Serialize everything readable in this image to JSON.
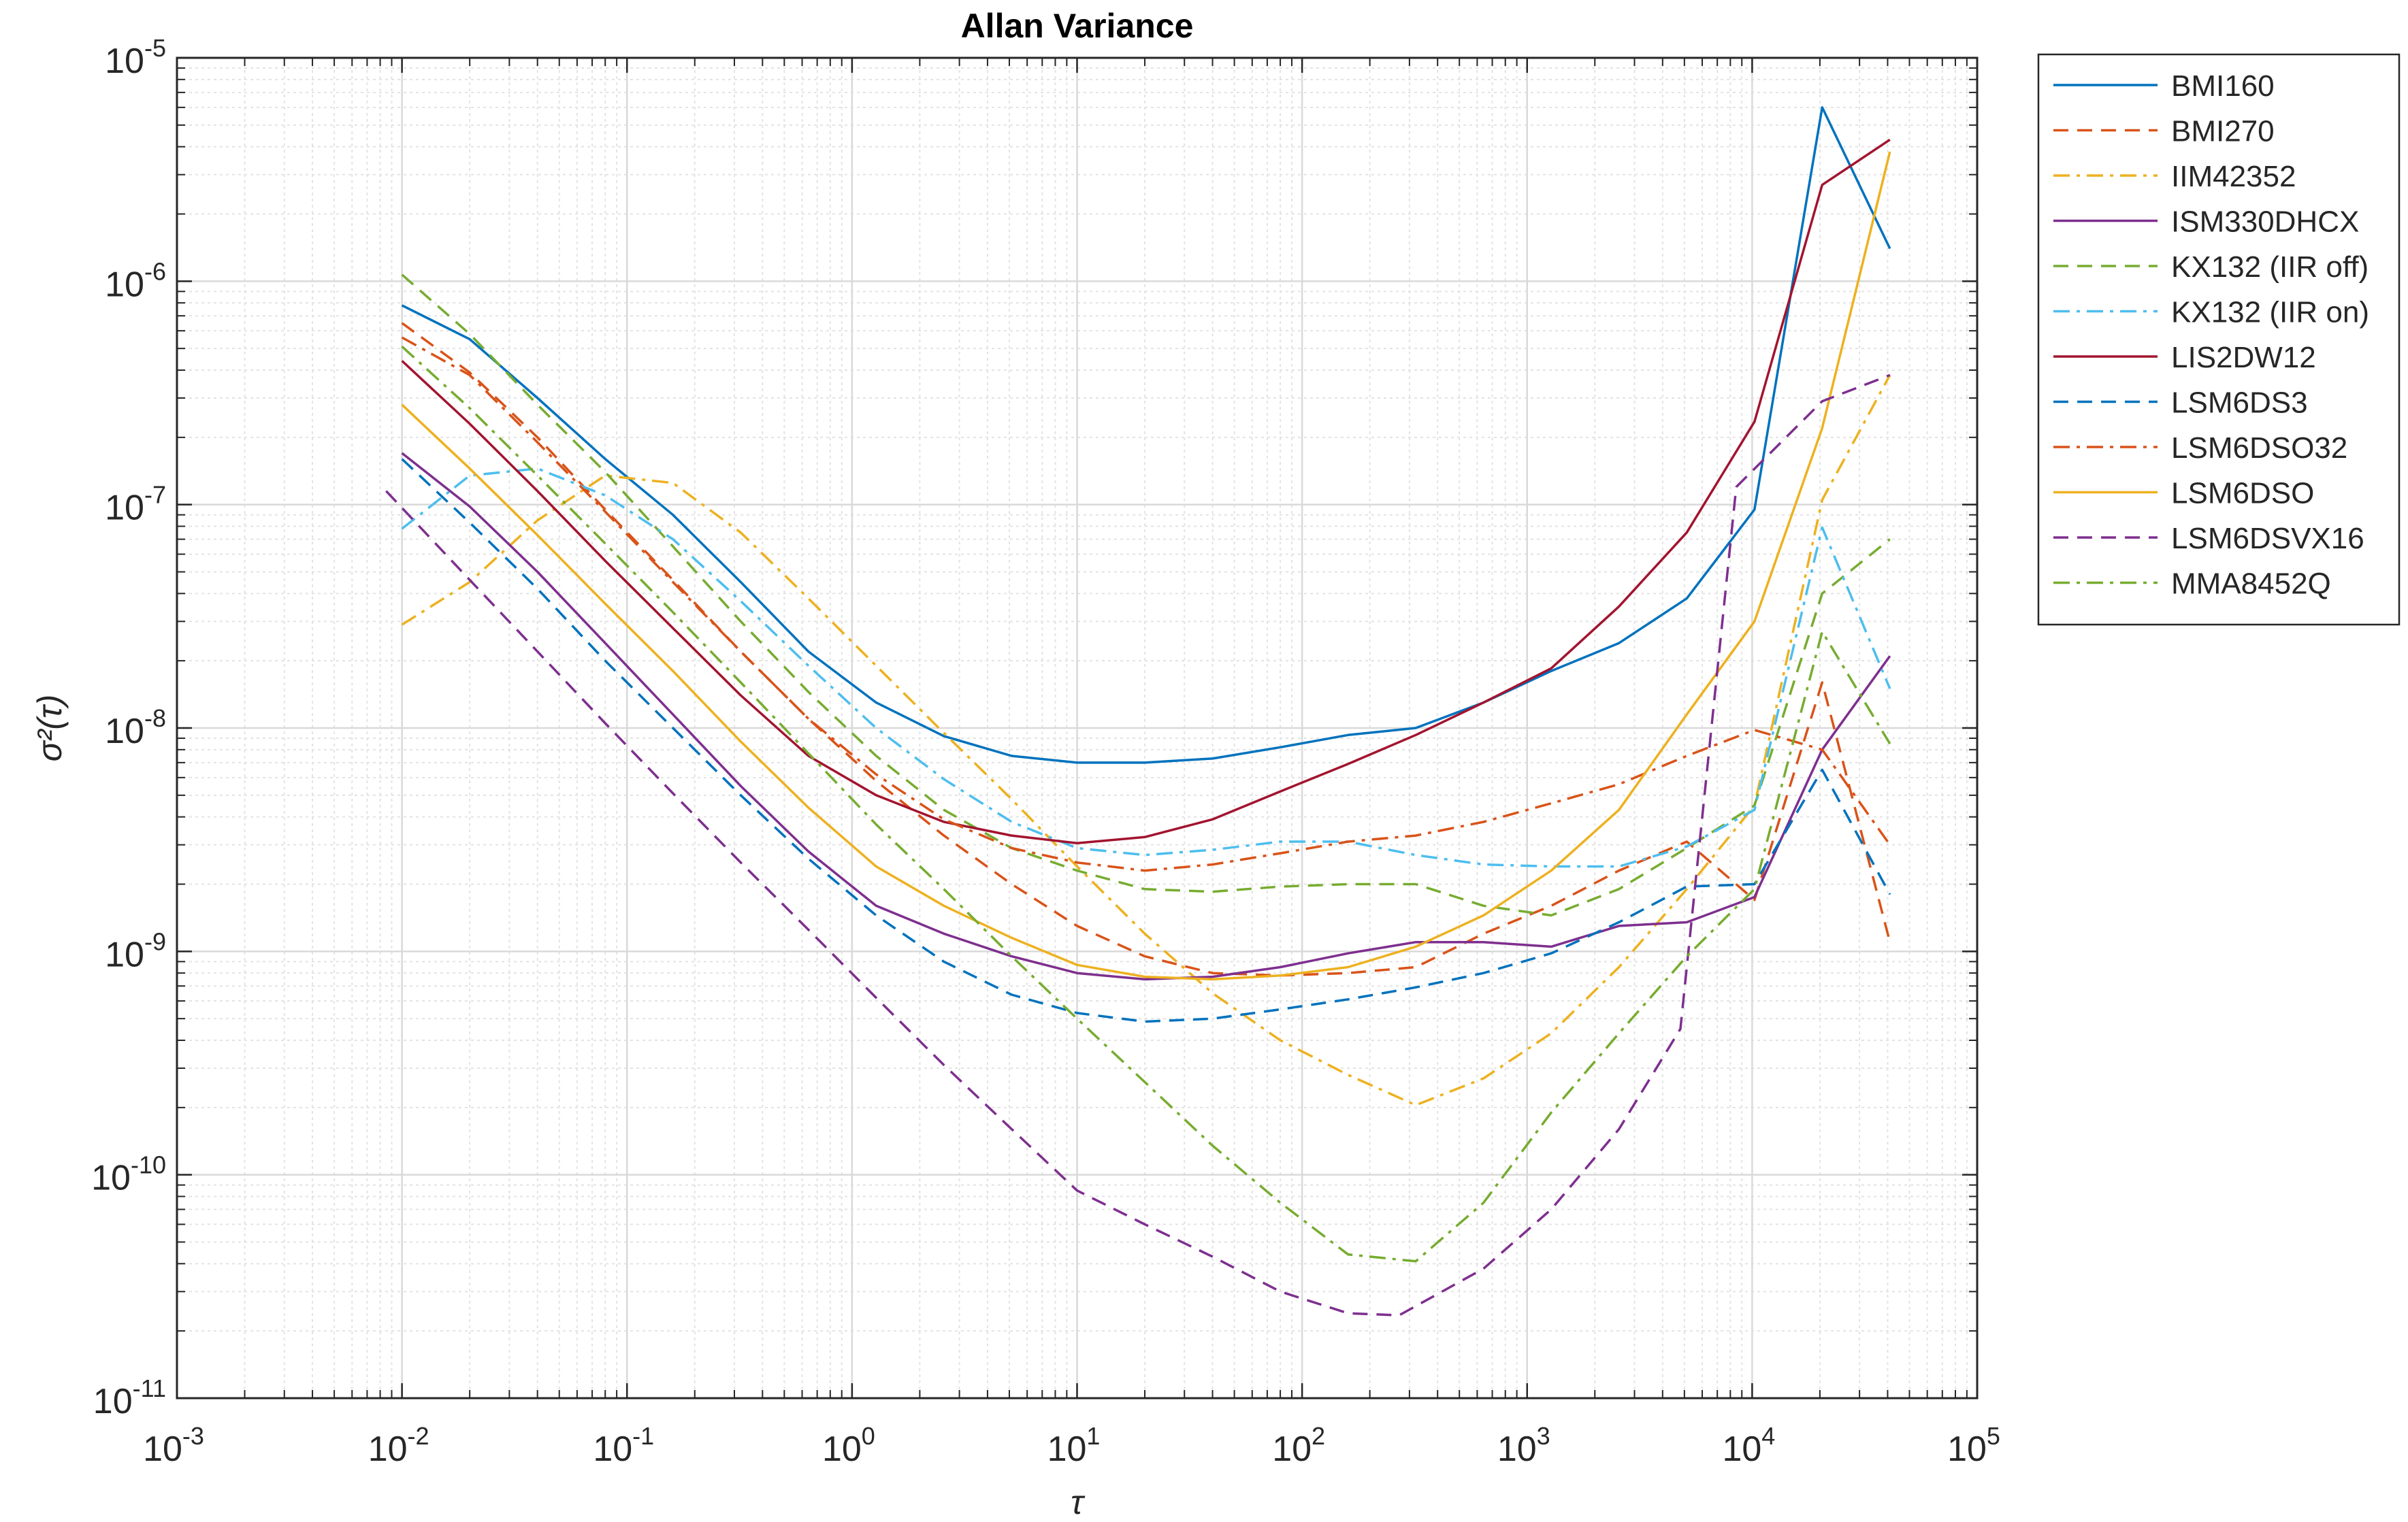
{
  "chart_data": {
    "type": "line",
    "title": "Allan Variance",
    "xlabel": "τ",
    "ylabel": "σ²(τ)",
    "xscale": "log",
    "yscale": "log",
    "xlim": [
      0.001,
      100000
    ],
    "ylim": [
      1e-11,
      1e-05
    ],
    "grid": true,
    "minor_grid": true,
    "legend_position": "outside-right-top",
    "x_ticks": [
      {
        "value": 0.001,
        "base": "10",
        "exp": "-3"
      },
      {
        "value": 0.01,
        "base": "10",
        "exp": "-2"
      },
      {
        "value": 0.1,
        "base": "10",
        "exp": "-1"
      },
      {
        "value": 1,
        "base": "10",
        "exp": "0"
      },
      {
        "value": 10,
        "base": "10",
        "exp": "1"
      },
      {
        "value": 100,
        "base": "10",
        "exp": "2"
      },
      {
        "value": 1000,
        "base": "10",
        "exp": "3"
      },
      {
        "value": 10000,
        "base": "10",
        "exp": "4"
      },
      {
        "value": 100000,
        "base": "10",
        "exp": "5"
      }
    ],
    "y_ticks": [
      {
        "value": 1e-11,
        "base": "10",
        "exp": "-11"
      },
      {
        "value": 1e-10,
        "base": "10",
        "exp": "-10"
      },
      {
        "value": 1e-09,
        "base": "10",
        "exp": "-9"
      },
      {
        "value": 1e-08,
        "base": "10",
        "exp": "-8"
      },
      {
        "value": 1e-07,
        "base": "10",
        "exp": "-7"
      },
      {
        "value": 1e-06,
        "base": "10",
        "exp": "-6"
      },
      {
        "value": 1e-05,
        "base": "10",
        "exp": "-5"
      }
    ],
    "series": [
      {
        "name": "BMI160",
        "color": "#0072BD",
        "dash": "solid",
        "x": [
          0.01,
          0.02,
          0.04,
          0.08,
          0.16,
          0.32,
          0.64,
          1.28,
          2.56,
          5.12,
          10,
          20,
          40,
          80,
          160,
          320,
          640,
          1280,
          2560,
          5120,
          10240,
          20480,
          40960
        ],
        "y": [
          7.8e-07,
          5.5e-07,
          3e-07,
          1.6e-07,
          9e-08,
          4.5e-08,
          2.2e-08,
          1.3e-08,
          9.2e-09,
          7.5e-09,
          7e-09,
          7e-09,
          7.3e-09,
          8.2e-09,
          9.3e-09,
          1e-08,
          1.3e-08,
          1.8e-08,
          2.4e-08,
          3.8e-08,
          9.5e-08,
          6e-06,
          1.4e-06
        ]
      },
      {
        "name": "BMI270",
        "color": "#D95319",
        "dash": "dashed",
        "x": [
          0.01,
          0.02,
          0.04,
          0.08,
          0.16,
          0.32,
          0.64,
          1.28,
          2.56,
          5.12,
          10,
          20,
          40,
          80,
          160,
          320,
          640,
          1280,
          2560,
          5120,
          10240,
          20480,
          40960
        ],
        "y": [
          6.5e-07,
          3.9e-07,
          2e-07,
          9.5e-08,
          4.6e-08,
          2.2e-08,
          1.1e-08,
          5.8e-09,
          3.3e-09,
          2e-09,
          1.3e-09,
          9.5e-10,
          8e-10,
          7.8e-10,
          8e-10,
          8.5e-10,
          1.2e-09,
          1.6e-09,
          2.3e-09,
          3.1e-09,
          1.7e-09,
          1.6e-08,
          1.1e-09
        ]
      },
      {
        "name": "IIM42352",
        "color": "#EDB120",
        "dash": "dashdot",
        "x": [
          0.01,
          0.02,
          0.04,
          0.08,
          0.16,
          0.32,
          0.64,
          1.28,
          2.56,
          5.12,
          10,
          20,
          40,
          80,
          160,
          320,
          640,
          1280,
          2560,
          5120,
          10240,
          20480,
          40960
        ],
        "y": [
          2.9e-08,
          4.5e-08,
          8.5e-08,
          1.35e-07,
          1.25e-07,
          7.5e-08,
          3.8e-08,
          1.9e-08,
          9.5e-09,
          4.8e-09,
          2.4e-09,
          1.2e-09,
          6.5e-10,
          4e-10,
          2.8e-10,
          2.05e-10,
          2.7e-10,
          4.3e-10,
          8.5e-10,
          1.9e-09,
          4.5e-09,
          1.05e-07,
          3.8e-07
        ]
      },
      {
        "name": "ISM330DHCX",
        "color": "#7E2F8E",
        "dash": "solid",
        "x": [
          0.01,
          0.02,
          0.04,
          0.08,
          0.16,
          0.32,
          0.64,
          1.28,
          2.56,
          5.12,
          10,
          20,
          40,
          80,
          160,
          320,
          640,
          1280,
          2560,
          5120,
          10240,
          20480,
          40960
        ],
        "y": [
          1.7e-07,
          9.8e-08,
          5e-08,
          2.4e-08,
          1.15e-08,
          5.5e-09,
          2.8e-09,
          1.6e-09,
          1.2e-09,
          9.5e-10,
          8e-10,
          7.5e-10,
          7.7e-10,
          8.5e-10,
          9.8e-10,
          1.1e-09,
          1.1e-09,
          1.05e-09,
          1.3e-09,
          1.35e-09,
          1.75e-09,
          8e-09,
          2.1e-08
        ]
      },
      {
        "name": "KX132 (IIR off)",
        "color": "#77AC30",
        "dash": "dashed",
        "x": [
          0.01,
          0.02,
          0.04,
          0.08,
          0.16,
          0.32,
          0.64,
          1.28,
          2.56,
          5.12,
          10,
          20,
          40,
          80,
          160,
          320,
          640,
          1280,
          2560,
          5120,
          10240,
          20480,
          40960
        ],
        "y": [
          1.07e-06,
          5.8e-07,
          2.8e-07,
          1.4e-07,
          6.5e-08,
          3e-08,
          1.45e-08,
          7.5e-09,
          4.3e-09,
          2.9e-09,
          2.3e-09,
          1.9e-09,
          1.85e-09,
          1.95e-09,
          2e-09,
          2e-09,
          1.6e-09,
          1.45e-09,
          1.9e-09,
          2.9e-09,
          4.5e-09,
          4e-08,
          7e-08
        ]
      },
      {
        "name": "KX132 (IIR on)",
        "color": "#4DBEEE",
        "dash": "dashdot",
        "x": [
          0.01,
          0.02,
          0.04,
          0.08,
          0.16,
          0.32,
          0.64,
          1.28,
          2.56,
          5.12,
          10,
          20,
          40,
          80,
          160,
          320,
          640,
          1280,
          2560,
          5120,
          10240,
          20480,
          40960
        ],
        "y": [
          7.8e-08,
          1.35e-07,
          1.45e-07,
          1.1e-07,
          7e-08,
          3.7e-08,
          1.9e-08,
          1e-08,
          5.9e-09,
          3.8e-09,
          2.9e-09,
          2.7e-09,
          2.85e-09,
          3.1e-09,
          3.1e-09,
          2.7e-09,
          2.45e-09,
          2.4e-09,
          2.4e-09,
          2.95e-09,
          4.3e-09,
          7.9e-08,
          1.5e-08
        ]
      },
      {
        "name": "LIS2DW12",
        "color": "#A2142F",
        "dash": "solid",
        "x": [
          0.01,
          0.02,
          0.04,
          0.08,
          0.16,
          0.32,
          0.64,
          1.28,
          2.56,
          5.12,
          10,
          20,
          40,
          80,
          160,
          320,
          640,
          1280,
          2560,
          5120,
          10240,
          20480,
          40960
        ],
        "y": [
          4.4e-07,
          2.3e-07,
          1.15e-07,
          5.6e-08,
          2.8e-08,
          1.4e-08,
          7.5e-09,
          5e-09,
          3.8e-09,
          3.3e-09,
          3.05e-09,
          3.25e-09,
          3.9e-09,
          5.2e-09,
          6.9e-09,
          9.3e-09,
          1.3e-08,
          1.85e-08,
          3.5e-08,
          7.5e-08,
          2.35e-07,
          2.7e-06,
          4.3e-06
        ]
      },
      {
        "name": "LSM6DS3",
        "color": "#0072BD",
        "dash": "dashed",
        "x": [
          0.01,
          0.02,
          0.04,
          0.08,
          0.16,
          0.32,
          0.64,
          1.28,
          2.56,
          5.12,
          10,
          20,
          40,
          80,
          160,
          320,
          640,
          1280,
          2560,
          5120,
          10240,
          20480,
          40960
        ],
        "y": [
          1.6e-07,
          8.3e-08,
          4.2e-08,
          2e-08,
          1e-08,
          5e-09,
          2.6e-09,
          1.45e-09,
          9e-10,
          6.4e-10,
          5.3e-10,
          4.85e-10,
          5e-10,
          5.5e-10,
          6.1e-10,
          6.9e-10,
          8e-10,
          9.8e-10,
          1.35e-09,
          1.95e-09,
          2e-09,
          6.5e-09,
          1.8e-09
        ]
      },
      {
        "name": "LSM6DSO32",
        "color": "#D95319",
        "dash": "dashdot",
        "x": [
          0.01,
          0.02,
          0.04,
          0.08,
          0.16,
          0.32,
          0.64,
          1.28,
          2.56,
          5.12,
          10,
          20,
          40,
          80,
          160,
          320,
          640,
          1280,
          2560,
          5120,
          10240,
          20480,
          40960
        ],
        "y": [
          5.6e-07,
          3.8e-07,
          1.9e-07,
          9.3e-08,
          4.5e-08,
          2.2e-08,
          1.1e-08,
          6.2e-09,
          3.9e-09,
          2.9e-09,
          2.5e-09,
          2.3e-09,
          2.45e-09,
          2.75e-09,
          3.1e-09,
          3.3e-09,
          3.8e-09,
          4.6e-09,
          5.6e-09,
          7.5e-09,
          9.8e-09,
          8e-09,
          3e-09
        ]
      },
      {
        "name": "LSM6DSO",
        "color": "#EDB120",
        "dash": "solid",
        "x": [
          0.01,
          0.02,
          0.04,
          0.08,
          0.16,
          0.32,
          0.64,
          1.28,
          2.56,
          5.12,
          10,
          20,
          40,
          80,
          160,
          320,
          640,
          1280,
          2560,
          5120,
          10240,
          20480,
          40960
        ],
        "y": [
          2.8e-07,
          1.45e-07,
          7.3e-08,
          3.6e-08,
          1.8e-08,
          8.7e-09,
          4.4e-09,
          2.4e-09,
          1.6e-09,
          1.15e-09,
          8.7e-10,
          7.7e-10,
          7.5e-10,
          7.8e-10,
          8.5e-10,
          1.05e-09,
          1.45e-09,
          2.3e-09,
          4.3e-09,
          1.15e-08,
          3e-08,
          2.2e-07,
          3.8e-06
        ]
      },
      {
        "name": "LSM6DSVX16",
        "color": "#7E2F8E",
        "dash": "dashed",
        "x": [
          0.0085,
          0.02,
          0.04,
          0.08,
          0.16,
          0.32,
          0.64,
          1.28,
          2.56,
          5.12,
          10,
          20,
          40,
          80,
          160,
          270,
          640,
          1280,
          2560,
          4800,
          8500,
          20480,
          40960
        ],
        "y": [
          1.15e-07,
          4.6e-08,
          2.2e-08,
          1.05e-08,
          5.1e-09,
          2.5e-09,
          1.25e-09,
          6.2e-10,
          3.1e-10,
          1.6e-10,
          8.5e-11,
          6e-11,
          4.3e-11,
          3e-11,
          2.4e-11,
          2.35e-11,
          3.8e-11,
          7e-11,
          1.6e-10,
          4.5e-10,
          1.2e-07,
          2.9e-07,
          3.8e-07
        ]
      },
      {
        "name": "MMA8452Q",
        "color": "#77AC30",
        "dash": "dashdot",
        "x": [
          0.01,
          0.02,
          0.04,
          0.08,
          0.16,
          0.32,
          0.64,
          1.28,
          2.56,
          5.12,
          10,
          20,
          40,
          80,
          160,
          320,
          640,
          1280,
          2560,
          5120,
          10240,
          20480,
          40960
        ],
        "y": [
          5.1e-07,
          2.7e-07,
          1.35e-07,
          6.7e-08,
          3.3e-08,
          1.6e-08,
          7.7e-09,
          3.7e-09,
          1.9e-09,
          9.5e-10,
          5e-10,
          2.6e-10,
          1.35e-10,
          7.5e-11,
          4.4e-11,
          4.1e-11,
          7.5e-11,
          1.9e-10,
          4.3e-10,
          9.5e-10,
          1.9e-09,
          2.7e-08,
          8.5e-09
        ]
      }
    ]
  }
}
